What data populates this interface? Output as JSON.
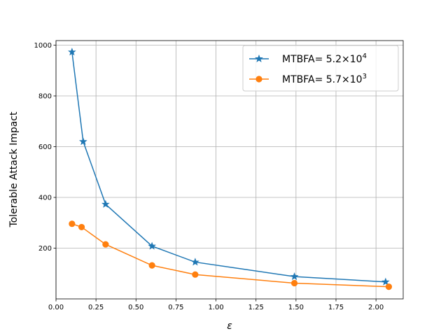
{
  "chart_data": {
    "type": "line",
    "xlabel": "ε",
    "ylabel": "Tolerable Attack Impact",
    "xlim": [
      0.0,
      2.17
    ],
    "ylim": [
      0,
      1018
    ],
    "x_ticks": [
      "0.00",
      "0.25",
      "0.50",
      "0.75",
      "1.00",
      "1.25",
      "1.50",
      "1.75",
      "2.00"
    ],
    "y_ticks": [
      "200",
      "400",
      "600",
      "800",
      "1000"
    ],
    "grid": true,
    "legend_position": "top-right",
    "series": [
      {
        "name": "MTBFA= 5.2×10",
        "name_exponent": "4",
        "color": "#1f77b4",
        "marker": "star",
        "x": [
          0.1,
          0.17,
          0.31,
          0.6,
          0.87,
          1.49,
          2.06
        ],
        "y": [
          973,
          620,
          373,
          208,
          145,
          88,
          67
        ]
      },
      {
        "name": "MTBFA= 5.7×10",
        "name_exponent": "3",
        "color": "#ff7f0e",
        "marker": "circle",
        "x": [
          0.1,
          0.16,
          0.31,
          0.6,
          0.87,
          1.49,
          2.08
        ],
        "y": [
          296,
          283,
          215,
          132,
          96,
          62,
          48
        ]
      }
    ]
  }
}
